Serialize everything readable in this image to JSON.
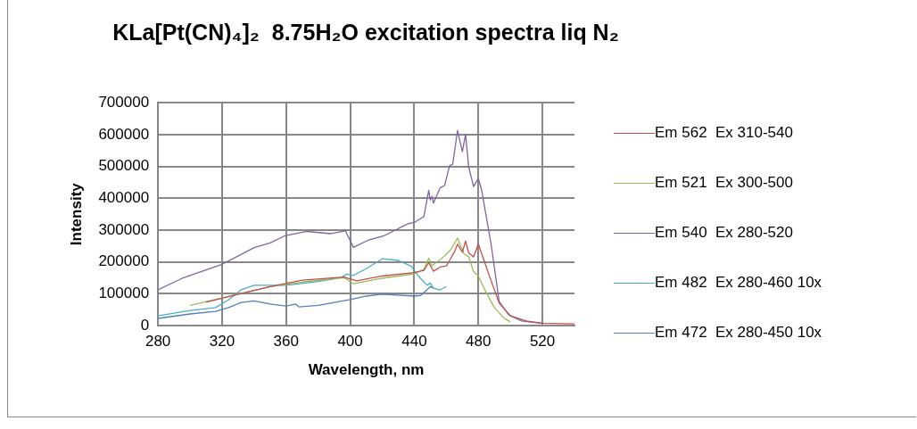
{
  "chart_data": {
    "type": "line",
    "title": "KLa[Pt(CN)₄]₂  8.75H₂O excitation spectra liq N₂",
    "xlabel": "Wavelength, nm",
    "ylabel": "Intensity",
    "xlim": [
      280,
      540
    ],
    "xticks": [
      280,
      320,
      360,
      400,
      440,
      480,
      520
    ],
    "ylim": [
      0,
      700000
    ],
    "yticks": [
      0,
      100000,
      200000,
      300000,
      400000,
      500000,
      600000,
      700000
    ],
    "grid": true,
    "legend": "right",
    "marker": "none",
    "line_style": "solid",
    "series": [
      {
        "name": "Em 562  Ex 310-540",
        "color": "#c0504d",
        "x": [
          310,
          330,
          350,
          370,
          396,
          404,
          420,
          440,
          446,
          449,
          452,
          456,
          460,
          462,
          465,
          467,
          470,
          472,
          474,
          477,
          480,
          484,
          488,
          493,
          500,
          510,
          520,
          540
        ],
        "values": [
          74000,
          99000,
          123000,
          143000,
          153000,
          141000,
          156000,
          167000,
          174000,
          198000,
          171000,
          184000,
          188000,
          205000,
          231000,
          256000,
          231000,
          266000,
          228000,
          216000,
          256000,
          198000,
          141000,
          71000,
          31000,
          15000,
          8000,
          6000
        ]
      },
      {
        "name": "Em 521  Ex 300-500",
        "color": "#9bbb59",
        "x": [
          300,
          330,
          350,
          370,
          396,
          402,
          420,
          440,
          446,
          449,
          451,
          458,
          463,
          467,
          471,
          474,
          477,
          480,
          484,
          490,
          496,
          500
        ],
        "values": [
          64000,
          99000,
          123000,
          137000,
          151000,
          132000,
          149000,
          163000,
          177000,
          212000,
          188000,
          215000,
          240000,
          275000,
          226000,
          216000,
          170000,
          156000,
          113000,
          57000,
          24000,
          12000
        ]
      },
      {
        "name": "Em 540  Ex 280-520",
        "color": "#8064a2",
        "x": [
          280,
          296,
          320,
          340,
          350,
          359,
          373,
          388,
          397,
          402,
          411,
          421,
          436,
          440,
          446,
          449,
          450,
          451,
          452,
          456,
          459,
          462,
          464,
          467,
          470,
          472,
          474,
          477,
          480,
          482,
          488,
          493,
          499,
          507,
          520
        ],
        "values": [
          113000,
          151000,
          193000,
          245000,
          260000,
          282000,
          296000,
          289000,
          298000,
          246000,
          268000,
          282000,
          320000,
          324000,
          343000,
          425000,
          395000,
          406000,
          385000,
          432000,
          441000,
          502000,
          507000,
          613000,
          546000,
          601000,
          498000,
          437000,
          462000,
          427000,
          254000,
          76000,
          34000,
          15000,
          7000
        ]
      },
      {
        "name": "Em 482  Ex 280-460 10x",
        "color": "#4bacc6",
        "x": [
          280,
          300,
          316,
          324,
          332,
          340,
          360,
          380,
          394,
          398,
          402,
          410,
          420,
          430,
          438,
          443,
          448,
          450,
          452,
          456,
          460
        ],
        "values": [
          31000,
          48000,
          57000,
          81000,
          113000,
          127000,
          127000,
          139000,
          151000,
          162000,
          158000,
          179000,
          210000,
          205000,
          187000,
          153000,
          127000,
          134000,
          118000,
          112000,
          123000
        ]
      },
      {
        "name": "Em 472  Ex 280-450 10x",
        "color": "#4f81bd",
        "x": [
          280,
          300,
          316,
          324,
          332,
          340,
          350,
          360,
          366,
          368,
          380,
          400,
          410,
          420,
          440,
          444,
          448,
          450,
          452
        ],
        "values": [
          23000,
          37000,
          45000,
          57000,
          73000,
          78000,
          68000,
          62000,
          68000,
          59000,
          64000,
          82000,
          93000,
          99000,
          93000,
          95000,
          113000,
          123000,
          118000
        ]
      }
    ]
  }
}
